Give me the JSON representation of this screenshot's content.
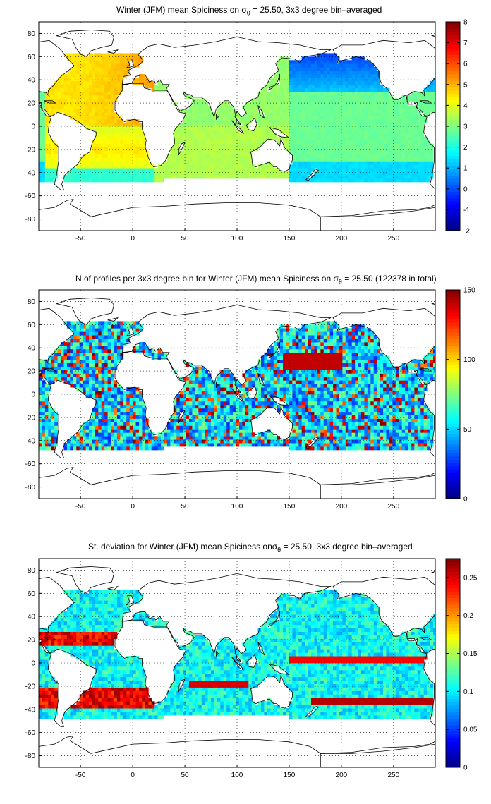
{
  "chart_data": [
    {
      "type": "heatmap",
      "title": {
        "pre": "Winter (JFM) mean Spiciness on ",
        "sigma": "σ",
        "sub": "θ",
        "post": " = 25.50, 3x3 degree bin–averaged"
      },
      "xlim": [
        -90,
        290
      ],
      "ylim": [
        -90,
        90
      ],
      "xticks": [
        -50,
        0,
        50,
        100,
        150,
        200,
        250
      ],
      "yticks": [
        -80,
        -60,
        -40,
        -20,
        0,
        20,
        40,
        60,
        80
      ],
      "grid": true,
      "colorbar": {
        "min": -2,
        "max": 8,
        "ticks": [
          -2,
          -1,
          0,
          1,
          2,
          3,
          4,
          5,
          6,
          7,
          8
        ],
        "colormap": "jet"
      }
    },
    {
      "type": "heatmap",
      "title": {
        "pre": "N of profiles per 3x3 degree bin for Winter (JFM) mean Spiciness on ",
        "sigma": "σ",
        "sub": "θ",
        "post": " = 25.50 (122378 in total)"
      },
      "xlim": [
        -90,
        290
      ],
      "ylim": [
        -90,
        90
      ],
      "xticks": [
        -50,
        0,
        50,
        100,
        150,
        200,
        250
      ],
      "yticks": [
        -80,
        -60,
        -40,
        -20,
        0,
        20,
        40,
        60,
        80
      ],
      "grid": true,
      "colorbar": {
        "min": 0,
        "max": 150,
        "ticks": [
          0,
          50,
          100,
          150
        ],
        "colormap": "jet"
      }
    },
    {
      "type": "heatmap",
      "title": {
        "pre": "St. deviation for Winter (JFM) mean Spiciness on",
        "sigma": "σ",
        "sub": "θ",
        "post": " = 25.50, 3x3 degree bin–averaged"
      },
      "xlim": [
        -90,
        290
      ],
      "ylim": [
        -90,
        90
      ],
      "xticks": [
        -50,
        0,
        50,
        100,
        150,
        200,
        250
      ],
      "yticks": [
        -80,
        -60,
        -40,
        -20,
        0,
        20,
        40,
        60,
        80
      ],
      "grid": true,
      "colorbar": {
        "min": 0,
        "max": 0.275,
        "ticks": [
          0,
          0.05,
          0.1,
          0.15,
          0.2,
          0.25
        ],
        "colormap": "jet"
      }
    }
  ]
}
